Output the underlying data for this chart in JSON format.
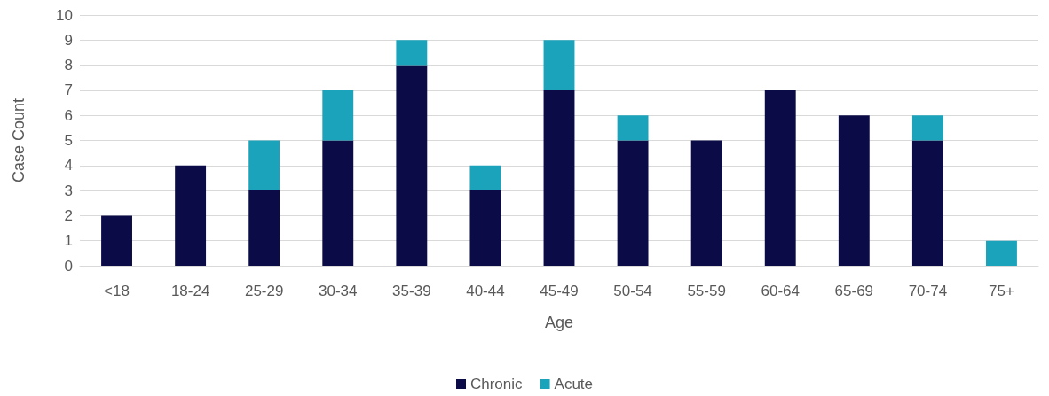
{
  "chart_data": {
    "type": "bar",
    "stacked": true,
    "xlabel": "Age",
    "ylabel": "Case Count",
    "categories": [
      "<18",
      "18-24",
      "25-29",
      "30-34",
      "35-39",
      "40-44",
      "45-49",
      "50-54",
      "55-59",
      "60-64",
      "65-69",
      "70-74",
      "75+"
    ],
    "series": [
      {
        "name": "Chronic",
        "color": "#0b0c47",
        "values": [
          2,
          4,
          3,
          5,
          8,
          3,
          7,
          5,
          5,
          7,
          6,
          5,
          0
        ]
      },
      {
        "name": "Acute",
        "color": "#1aa3ba",
        "values": [
          0,
          0,
          2,
          2,
          1,
          1,
          2,
          1,
          0,
          0,
          0,
          1,
          1
        ]
      }
    ],
    "ylim": [
      0,
      10
    ],
    "yticks": [
      0,
      1,
      2,
      3,
      4,
      5,
      6,
      7,
      8,
      9,
      10
    ],
    "grid": "y",
    "legend": "bottom"
  }
}
